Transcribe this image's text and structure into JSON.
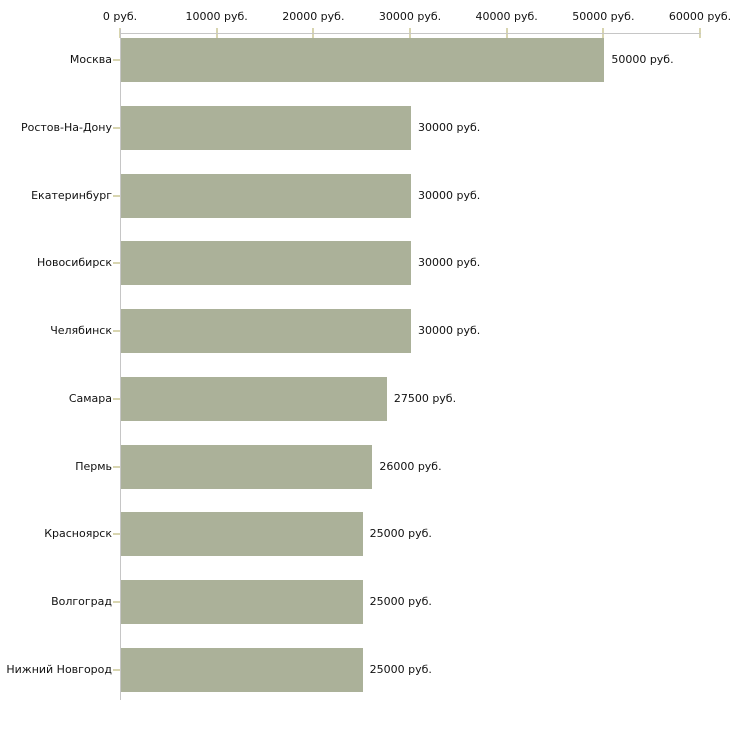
{
  "chart_data": {
    "type": "bar",
    "orientation": "horizontal",
    "title": "",
    "xlabel": "",
    "ylabel": "",
    "categories": [
      "Москва",
      "Ростов-На-Дону",
      "Екатеринбург",
      "Новосибирск",
      "Челябинск",
      "Самара",
      "Пермь",
      "Красноярск",
      "Волгоград",
      "Нижний Новгород"
    ],
    "values": [
      50000,
      30000,
      30000,
      30000,
      30000,
      27500,
      26000,
      25000,
      25000,
      25000
    ],
    "value_labels": [
      "50000 руб.",
      "30000 руб.",
      "30000 руб.",
      "30000 руб.",
      "30000 руб.",
      "27500 руб.",
      "26000 руб.",
      "25000 руб.",
      "25000 руб.",
      "25000 руб."
    ],
    "x_axis": {
      "position": "top",
      "xlim": [
        0,
        60000
      ],
      "ticks": [
        0,
        10000,
        20000,
        30000,
        40000,
        50000,
        60000
      ],
      "tick_labels": [
        "0 руб.",
        "10000 руб.",
        "20000 руб.",
        "30000 руб.",
        "40000 руб.",
        "50000 руб.",
        "60000 руб."
      ]
    },
    "grid": false,
    "legend": false,
    "colors": {
      "bar": "#abb199",
      "axis_line": "#c6c6c6",
      "tick_mark": "#d8d5b0",
      "text": "#111111",
      "background": "#ffffff"
    }
  }
}
